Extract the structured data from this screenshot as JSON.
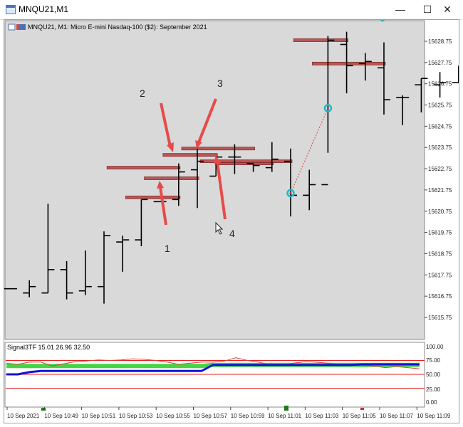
{
  "window": {
    "title": "MNQU21,M1",
    "controls": {
      "minimize": "—",
      "maximize": "☐",
      "close": "✕"
    }
  },
  "chart": {
    "caption": "MNQU21, M1:  Micro E-mini Nasdaq-100 ($2): September 2021",
    "background": "#d9d9d9"
  },
  "indicator": {
    "caption": "Signal3TF 15.01 26.96 32.50",
    "levels": [
      "100.00",
      "75.00",
      "50.00",
      "25.00",
      "0.00"
    ]
  },
  "annotations": [
    "1",
    "2",
    "3",
    "4"
  ],
  "chart_data": [
    {
      "type": "candlestick",
      "title": "MNQU21, M1:  Micro E-mini Nasdaq-100 ($2): September 2021",
      "y_ticks": [
        "15628.75",
        "15627.75",
        "15626.75",
        "15625.75",
        "15624.75",
        "15623.75",
        "15622.75",
        "15621.75",
        "15620.75",
        "15619.75",
        "15618.75",
        "15617.75",
        "15616.75",
        "15615.75"
      ],
      "x_ticks": [
        "10 Sep 2021",
        "10 Sep 10:49",
        "10 Sep 10:51",
        "10 Sep 10:53",
        "10 Sep 10:55",
        "10 Sep 10:57",
        "10 Sep 10:59",
        "10 Sep 11:01",
        "10 Sep 11:03",
        "10 Sep 11:05",
        "10 Sep 11:07",
        "10 Sep 11:09"
      ],
      "bars": [
        {
          "o": 15617.1,
          "h": 15617.1,
          "l": 15617.1,
          "c": 15617.1
        },
        {
          "o": 15616.9,
          "h": 15617.5,
          "l": 15616.7,
          "c": 15617.2
        },
        {
          "o": 15616.9,
          "h": 15621.1,
          "l": 15616.9,
          "c": 15618.0
        },
        {
          "o": 15618.0,
          "h": 15618.4,
          "l": 15616.6,
          "c": 15616.9
        },
        {
          "o": 15617.0,
          "h": 15618.9,
          "l": 15616.8,
          "c": 15617.2
        },
        {
          "o": 15617.2,
          "h": 15619.8,
          "l": 15616.4,
          "c": 15619.6
        },
        {
          "o": 15619.3,
          "h": 15619.6,
          "l": 15617.9,
          "c": 15619.4
        },
        {
          "o": 15619.4,
          "h": 15621.3,
          "l": 15619.1,
          "c": 15621.3
        },
        {
          "o": 15621.2,
          "h": 15621.2,
          "l": 15621.2,
          "c": 15621.2
        },
        {
          "o": 15621.3,
          "h": 15623.0,
          "l": 15621.0,
          "c": 15622.6
        },
        {
          "o": 15622.7,
          "h": 15623.7,
          "l": 15620.9,
          "c": 15623.1
        },
        {
          "o": 15622.4,
          "h": 15623.3,
          "l": 15622.4,
          "c": 15623.3
        },
        {
          "o": 15623.3,
          "h": 15623.9,
          "l": 15622.5,
          "c": 15623.3
        },
        {
          "o": 15623.0,
          "h": 15623.0,
          "l": 15622.6,
          "c": 15622.9
        },
        {
          "o": 15622.8,
          "h": 15624.0,
          "l": 15622.6,
          "c": 15623.2
        },
        {
          "o": 15623.1,
          "h": 15623.7,
          "l": 15620.5,
          "c": 15621.5
        },
        {
          "o": 15621.5,
          "h": 15622.7,
          "l": 15620.8,
          "c": 15622.0
        },
        {
          "o": 15622.0,
          "h": 15629.0,
          "l": 15623.5,
          "c": 15628.8
        },
        {
          "o": 15628.6,
          "h": 15629.2,
          "l": 15626.3,
          "c": 15627.6
        },
        {
          "o": 15627.7,
          "h": 15628.2,
          "l": 15626.9,
          "c": 15627.8
        },
        {
          "o": 15627.5,
          "h": 15628.7,
          "l": 15625.3,
          "c": 15626.0
        },
        {
          "o": 15626.1,
          "h": 15626.2,
          "l": 15624.8,
          "c": 15626.1
        },
        {
          "o": 15626.7,
          "h": 15627.0,
          "l": 15625.4,
          "c": 15627.0
        },
        {
          "o": 15626.7,
          "h": 15627.3,
          "l": 15626.1,
          "c": 15626.8
        },
        {
          "o": 15626.8,
          "h": 15627.6,
          "l": 15626.8,
          "c": 15627.1
        },
        {
          "o": 15627.2,
          "h": 15627.3,
          "l": 15626.4,
          "c": 15627.3
        },
        {
          "o": 15627.2,
          "h": 15627.4,
          "l": 15626.8,
          "c": 15626.8
        }
      ],
      "levels": [
        15621.4,
        15622.3,
        15622.8,
        15623.4,
        15623.7,
        15623.0,
        15623.1,
        15628.8,
        15627.7
      ],
      "markers": [
        15621.6,
        15625.6
      ]
    },
    {
      "type": "line",
      "title": "Signal3TF 15.01 26.96 32.50",
      "ylim": [
        0,
        100
      ],
      "hlines": [
        75,
        50,
        25
      ],
      "series": [
        {
          "color": "#1313d8",
          "values": [
            50,
            50,
            54,
            56,
            56,
            56,
            56,
            56,
            56,
            56,
            56,
            56,
            56,
            56,
            56,
            56,
            56,
            56,
            67,
            67,
            67,
            67,
            67,
            67,
            67,
            67,
            67,
            67,
            67,
            67,
            67,
            68,
            68,
            68,
            68,
            68,
            68
          ]
        },
        {
          "color": "#3cd23c",
          "values": [
            65,
            65,
            65,
            65,
            65,
            65,
            65,
            65,
            65,
            65,
            65,
            65,
            65,
            65,
            65,
            65,
            65,
            65,
            67,
            67,
            67,
            67,
            67,
            67,
            67,
            67,
            67,
            67,
            67,
            67,
            67,
            67,
            67,
            67,
            67,
            67,
            67
          ]
        },
        {
          "color": "#d84040",
          "values": [
            70,
            68,
            72,
            72,
            65,
            69,
            73,
            74,
            76,
            75,
            76,
            78,
            77,
            75,
            72,
            68,
            70,
            72,
            72,
            74,
            80,
            75,
            72,
            66,
            66,
            70,
            73,
            72,
            70,
            68,
            66,
            66,
            65,
            62,
            64,
            62,
            60
          ]
        }
      ]
    }
  ]
}
